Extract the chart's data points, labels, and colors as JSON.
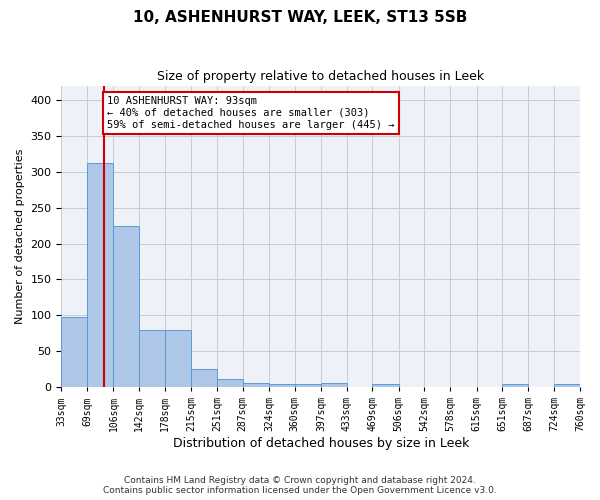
{
  "title": "10, ASHENHURST WAY, LEEK, ST13 5SB",
  "subtitle": "Size of property relative to detached houses in Leek",
  "xlabel": "Distribution of detached houses by size in Leek",
  "ylabel": "Number of detached properties",
  "bin_labels": [
    "33sqm",
    "69sqm",
    "106sqm",
    "142sqm",
    "178sqm",
    "215sqm",
    "251sqm",
    "287sqm",
    "324sqm",
    "360sqm",
    "397sqm",
    "433sqm",
    "469sqm",
    "506sqm",
    "542sqm",
    "578sqm",
    "615sqm",
    "651sqm",
    "687sqm",
    "724sqm",
    "760sqm"
  ],
  "bar_heights": [
    98,
    312,
    224,
    80,
    80,
    25,
    12,
    6,
    4,
    4,
    6,
    0,
    4,
    0,
    0,
    0,
    0,
    4,
    0,
    4
  ],
  "bar_color": "#aec6e8",
  "bar_edge_color": "#5b9bd5",
  "grid_color": "#cccccc",
  "background_color": "#eef2f8",
  "vline_x": 93,
  "vline_color": "#cc0000",
  "annotation_text": "10 ASHENHURST WAY: 93sqm\n← 40% of detached houses are smaller (303)\n59% of semi-detached houses are larger (445) →",
  "annotation_box_color": "#cc0000",
  "footnote": "Contains HM Land Registry data © Crown copyright and database right 2024.\nContains public sector information licensed under the Open Government Licence v3.0.",
  "ylim": [
    0,
    420
  ],
  "yticks": [
    0,
    50,
    100,
    150,
    200,
    250,
    300,
    350,
    400
  ],
  "bin_edges": [
    33,
    69,
    106,
    142,
    178,
    215,
    251,
    287,
    324,
    360,
    397,
    433,
    469,
    506,
    542,
    578,
    615,
    651,
    687,
    724,
    760
  ]
}
